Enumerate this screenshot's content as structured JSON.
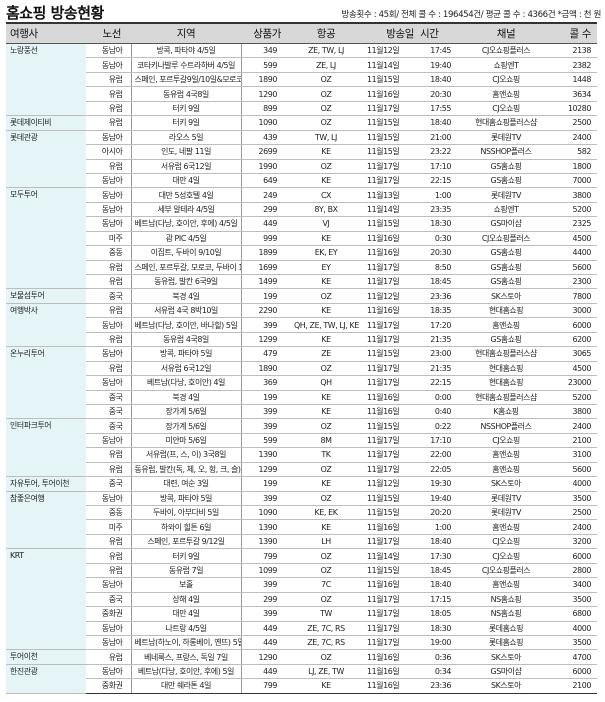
{
  "header": {
    "title": "홈쇼핑 방송현황",
    "summary": "방송횟수 : 45회/ 전체 콜 수 : 196454건/ 평균 콜 수 : 4366건 *금액 : 천 원"
  },
  "table": {
    "columns": {
      "agency": "여행사",
      "route": "노선",
      "region": "지역",
      "price": "상품가",
      "airline": "항공",
      "date": "방송일",
      "time": "시간",
      "channel": "채널",
      "calls": "콜 수"
    },
    "groups": [
      {
        "agency": "노랑풍선",
        "rows": [
          [
            "동남아",
            "방콕, 파타야 4/5일",
            "349",
            "ZE, TW, LJ",
            "11월12일",
            "17:45",
            "CJ오쇼핑플러스",
            "2138"
          ],
          [
            "동남아",
            "코타키나발루 수트라하버 4/5일",
            "599",
            "ZE, LJ",
            "11월14일",
            "19:40",
            "쇼핑엔T",
            "2382"
          ],
          [
            "유럽",
            "스페인, 포르투갈9일/10일&모로코 12일",
            "1890",
            "OZ",
            "11월15일",
            "18:40",
            "CJ오쇼핑",
            "1448"
          ],
          [
            "유럽",
            "동유럽 4국8일",
            "1290",
            "OZ",
            "11월16일",
            "20:30",
            "홈앤쇼핑",
            "3634"
          ],
          [
            "유럽",
            "터키 9일",
            "899",
            "OZ",
            "11월17일",
            "17:55",
            "CJ오쇼핑",
            "10280"
          ]
        ]
      },
      {
        "agency": "롯데제이티비",
        "rows": [
          [
            "유럽",
            "터키 9일",
            "1090",
            "OZ",
            "11월15일",
            "18:40",
            "현대홈쇼핑플러스샵",
            "2500"
          ]
        ]
      },
      {
        "agency": "롯데관광",
        "rows": [
          [
            "동남아",
            "라오스 5일",
            "439",
            "TW, LJ",
            "11월15일",
            "21:00",
            "롯데원TV",
            "2400"
          ],
          [
            "아시아",
            "인도, 네팔 11일",
            "2699",
            "KE",
            "11월15일",
            "23:22",
            "NSSHOP플러스",
            "582"
          ],
          [
            "유럽",
            "서유럽 6국12일",
            "1990",
            "OZ",
            "11월17일",
            "17:10",
            "GS홈쇼핑",
            "1800"
          ],
          [
            "동남아",
            "대만 4일",
            "649",
            "KE",
            "11월17일",
            "22:15",
            "GS홈쇼핑",
            "7000"
          ]
        ]
      },
      {
        "agency": "모두투어",
        "rows": [
          [
            "동남아",
            "대만 5성호텔 4일",
            "249",
            "CX",
            "11월13일",
            "1:00",
            "롯데원TV",
            "3800"
          ],
          [
            "동남아",
            "세부 알테라 4/5일",
            "299",
            "8Y, BX",
            "11월14일",
            "23:35",
            "쇼핑엔T",
            "5200"
          ],
          [
            "동남아",
            "베트남(다낭, 호이안, 후에) 4/5일",
            "449",
            "VJ",
            "11월15일",
            "18:30",
            "GS마이샵",
            "2325"
          ],
          [
            "미주",
            "괌 PIC 4/5일",
            "999",
            "KE",
            "11월16일",
            "0:30",
            "CJ오쇼핑플러스",
            "4500"
          ],
          [
            "중동",
            "이집트, 두바이 9/10일",
            "1899",
            "EK, EY",
            "11월16일",
            "20:30",
            "GS홈쇼핑",
            "4400"
          ],
          [
            "유럽",
            "스페인, 포르투갈, 모로코, 두바이 12일",
            "1699",
            "EY",
            "11월17일",
            "8:50",
            "GS홈쇼핑",
            "5600"
          ],
          [
            "유럽",
            "동유럽, 발칸 6국9일",
            "1499",
            "KE",
            "11월17일",
            "18:45",
            "GS홈쇼핑",
            "2300"
          ]
        ]
      },
      {
        "agency": "보물섬투어",
        "rows": [
          [
            "중국",
            "북경 4일",
            "199",
            "OZ",
            "11월12일",
            "23:36",
            "SK스토아",
            "7800"
          ]
        ]
      },
      {
        "agency": "여행박사",
        "rows": [
          [
            "유럽",
            "서유럽 4국 8박10일",
            "2290",
            "KE",
            "11월16일",
            "18:35",
            "현대홈쇼핑",
            "3000"
          ],
          [
            "동남아",
            "베트남(다낭, 호이안, 바나힐) 5일",
            "399",
            "QH, ZE, TW, LJ, KE",
            "11월17일",
            "17:20",
            "홈앤쇼핑",
            "6000"
          ],
          [
            "유럽",
            "동유럽 4국8일",
            "1299",
            "KE",
            "11월17일",
            "21:35",
            "GS홈쇼핑",
            "6200"
          ]
        ]
      },
      {
        "agency": "온누리투어",
        "rows": [
          [
            "동남아",
            "방콕, 파타야 5일",
            "479",
            "ZE",
            "11월15일",
            "23:00",
            "현대홈쇼핑플러스샵",
            "3065"
          ],
          [
            "유럽",
            "서유럽 6국12일",
            "1890",
            "OZ",
            "11월17일",
            "21:35",
            "현대홈쇼핑",
            "4500"
          ],
          [
            "동남아",
            "베트남(다낭, 호이안) 4일",
            "369",
            "QH",
            "11월17일",
            "22:15",
            "현대홈쇼핑",
            "23000"
          ],
          [
            "중국",
            "북경 4일",
            "199",
            "KE",
            "11월16일",
            "0:00",
            "현대홈쇼핑플러스샵",
            "5200"
          ],
          [
            "중국",
            "장가계 5/6일",
            "399",
            "KE",
            "11월16일",
            "0:40",
            "K홈쇼핑",
            "3800"
          ]
        ]
      },
      {
        "agency": "인터파크투어",
        "rows": [
          [
            "중국",
            "장가계 5/6일",
            "399",
            "OZ",
            "11월15일",
            "0:22",
            "NSSHOP플러스",
            "2400"
          ],
          [
            "동남아",
            "미얀마 5/6일",
            "599",
            "8M",
            "11월17일",
            "17:10",
            "CJ오쇼핑",
            "2100"
          ],
          [
            "유럽",
            "서유럽(프, 스, 이) 3국8일",
            "1390",
            "TK",
            "11월17일",
            "22:00",
            "홈앤쇼핑",
            "3100"
          ],
          [
            "유럽",
            "동유럽, 발칸(독, 체, 오, 헝, 크, 슬) 6국10일",
            "1299",
            "OZ",
            "11월17일",
            "22:05",
            "홈앤쇼핑",
            "5600"
          ]
        ]
      },
      {
        "agency": "자유투어, 투어이천",
        "rows": [
          [
            "중국",
            "대련, 여순 3일",
            "199",
            "KE",
            "11월12일",
            "19:30",
            "SK스토아",
            "4000"
          ]
        ]
      },
      {
        "agency": "참좋은여행",
        "rows": [
          [
            "동남아",
            "방콕, 파타야 5일",
            "399",
            "OZ",
            "11월15일",
            "19:40",
            "롯데원TV",
            "3500"
          ],
          [
            "중동",
            "두바이, 아부다비 5일",
            "1090",
            "KE, EK",
            "11월15일",
            "20:20",
            "롯데원TV",
            "2500"
          ],
          [
            "미주",
            "하와이 힐튼 6일",
            "1390",
            "KE",
            "11월16일",
            "1:00",
            "홈앤쇼핑",
            "2400"
          ],
          [
            "유럽",
            "스페인, 포르투갈 9/12일",
            "1390",
            "LH",
            "11월17일",
            "18:40",
            "CJ오쇼핑",
            "3200"
          ]
        ]
      },
      {
        "agency": "KRT",
        "rows": [
          [
            "유럽",
            "터키 9일",
            "799",
            "OZ",
            "11월14일",
            "17:30",
            "CJ오쇼핑",
            "6000"
          ],
          [
            "유럽",
            "동유럽 7일",
            "1099",
            "OZ",
            "11월15일",
            "18:45",
            "CJ오쇼핑플러스",
            "2800"
          ],
          [
            "동남아",
            "보홀",
            "399",
            "7C",
            "11월16일",
            "18:40",
            "홈앤쇼핑",
            "3400"
          ],
          [
            "중국",
            "상해 4일",
            "299",
            "OZ",
            "11월17일",
            "17:15",
            "NS홈쇼핑",
            "3500"
          ],
          [
            "중화권",
            "대만 4일",
            "399",
            "TW",
            "11월17일",
            "18:05",
            "NS홈쇼핑",
            "6800"
          ],
          [
            "동남아",
            "나트랑 4/5일",
            "449",
            "ZE, 7C, RS",
            "11월17일",
            "18:30",
            "롯데홈쇼핑",
            "4000"
          ],
          [
            "동남아",
            "베트남(하노이, 하롱베이, 옌뜨) 5일",
            "449",
            "ZE, 7C, RS",
            "11월17일",
            "19:00",
            "롯데홈쇼핑",
            "3500"
          ]
        ]
      },
      {
        "agency": "투어이천",
        "rows": [
          [
            "유럽",
            "베네룩스, 프랑스, 독일 7일",
            "1290",
            "OZ",
            "11월16일",
            "0:36",
            "SK스토아",
            "4700"
          ]
        ]
      },
      {
        "agency": "한진관광",
        "rows": [
          [
            "동남아",
            "베트남(다낭, 호이안, 후에) 5일",
            "449",
            "LJ, ZE, TW",
            "11월16일",
            "0:34",
            "GS마이샵",
            "6000"
          ],
          [
            "중화권",
            "대만 쉐라톤 4일",
            "799",
            "KE",
            "11월16일",
            "23:36",
            "SK스토아",
            "2100"
          ]
        ]
      }
    ]
  },
  "colors": {
    "header_bg": "#d8d8d8",
    "agency_bg": "#e5f4f7",
    "rule_dark": "#333333",
    "rule_light": "#bdbdbd"
  }
}
